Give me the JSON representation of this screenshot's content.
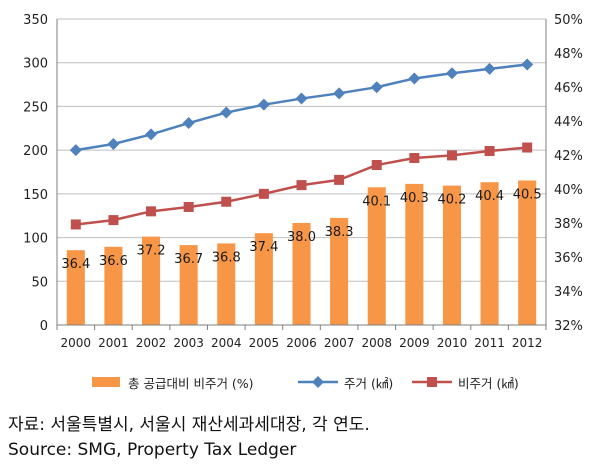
{
  "chart_data": {
    "type": "bar+line",
    "categories": [
      "2000",
      "2001",
      "2002",
      "2003",
      "2004",
      "2005",
      "2006",
      "2007",
      "2008",
      "2009",
      "2010",
      "2011",
      "2012"
    ],
    "left_axis": {
      "min": 0,
      "max": 350,
      "ticks": [
        "0",
        "50",
        "100",
        "150",
        "200",
        "250",
        "300",
        "350"
      ]
    },
    "right_axis": {
      "min": 32,
      "max": 50,
      "ticks": [
        "32%",
        "34%",
        "36%",
        "38%",
        "40%",
        "42%",
        "44%",
        "46%",
        "48%",
        "50%"
      ]
    },
    "grid": "horizontal",
    "legend_position": "bottom",
    "series": [
      {
        "name": "총 공급대비 비주거 (%)",
        "kind": "bar",
        "axis": "right",
        "color": "#F79646",
        "values": [
          36.4,
          36.6,
          37.2,
          36.7,
          36.8,
          37.4,
          38.0,
          38.3,
          40.1,
          40.3,
          40.2,
          40.4,
          40.5
        ],
        "labels": [
          "36.4",
          "36.6",
          "37.2",
          "36.7",
          "36.8",
          "37.4",
          "38.0",
          "38.3",
          "40.1",
          "40.3",
          "40.2",
          "40.4",
          "40.5"
        ]
      },
      {
        "name": "주거 (㎢)",
        "kind": "line",
        "marker": "diamond",
        "axis": "left",
        "color": "#4F81BD",
        "values": [
          200,
          207,
          218,
          231,
          243,
          252,
          259,
          265,
          272,
          282,
          288,
          293,
          298
        ]
      },
      {
        "name": "비주거 (㎢)",
        "kind": "line",
        "marker": "square",
        "axis": "left",
        "color": "#C0504D",
        "values": [
          115,
          120,
          130,
          135,
          141,
          150,
          160,
          166,
          183,
          191,
          194,
          199,
          203
        ]
      }
    ]
  },
  "source_lines": [
    "자료: 서울특별시, 서울시 재산세과세대장, 각 연도.",
    "Source: SMG, Property Tax Ledger"
  ]
}
